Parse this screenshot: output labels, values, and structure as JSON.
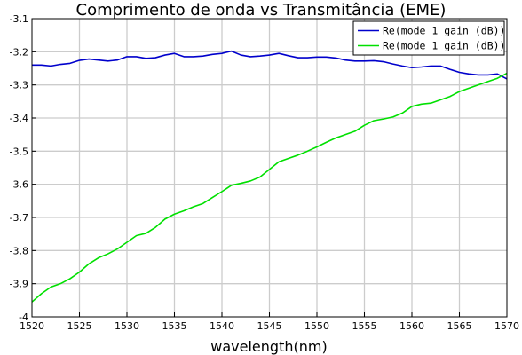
{
  "chart_data": {
    "type": "line",
    "title": "Comprimento de onda vs Transmitância (EME)",
    "xlabel": "wavelength(nm)",
    "ylabel": "",
    "xlim": [
      1520,
      1570
    ],
    "ylim": [
      -4,
      -3.1
    ],
    "xticks": [
      1520,
      1525,
      1530,
      1535,
      1540,
      1545,
      1550,
      1555,
      1560,
      1565,
      1570
    ],
    "xtick_labels": [
      "1520",
      "1525",
      "1530",
      "1535",
      "1540",
      "1545",
      "1550",
      "1555",
      "1560",
      "1565",
      "1570"
    ],
    "yticks": [
      -4,
      -3.9,
      -3.8,
      -3.7,
      -3.6,
      -3.5,
      -3.4,
      -3.3,
      -3.2,
      -3.1
    ],
    "ytick_labels": [
      "-4",
      "-3.9",
      "-3.8",
      "-3.7",
      "-3.6",
      "-3.5",
      "-3.4",
      "-3.3",
      "-3.2",
      "-3.1"
    ],
    "grid": true,
    "legend_position": "top-right",
    "series": [
      {
        "name": "Re(mode 1 gain (dB))",
        "color": "#0000cc",
        "x": [
          1520,
          1521,
          1522,
          1523,
          1524,
          1525,
          1526,
          1527,
          1528,
          1529,
          1530,
          1531,
          1532,
          1533,
          1534,
          1535,
          1536,
          1537,
          1538,
          1539,
          1540,
          1541,
          1542,
          1543,
          1544,
          1545,
          1546,
          1547,
          1548,
          1549,
          1550,
          1551,
          1552,
          1553,
          1554,
          1555,
          1556,
          1557,
          1558,
          1559,
          1560,
          1561,
          1562,
          1563,
          1564,
          1565,
          1566,
          1567,
          1568,
          1569,
          1570
        ],
        "y": [
          -3.24,
          -3.24,
          -3.243,
          -3.238,
          -3.235,
          -3.226,
          -3.222,
          -3.225,
          -3.228,
          -3.225,
          -3.215,
          -3.215,
          -3.22,
          -3.218,
          -3.21,
          -3.205,
          -3.215,
          -3.215,
          -3.213,
          -3.208,
          -3.205,
          -3.198,
          -3.21,
          -3.215,
          -3.213,
          -3.21,
          -3.205,
          -3.212,
          -3.218,
          -3.218,
          -3.216,
          -3.216,
          -3.219,
          -3.225,
          -3.228,
          -3.228,
          -3.227,
          -3.23,
          -3.237,
          -3.243,
          -3.248,
          -3.246,
          -3.243,
          -3.243,
          -3.253,
          -3.262,
          -3.267,
          -3.27,
          -3.27,
          -3.267,
          -3.282
        ]
      },
      {
        "name": "Re(mode 1 gain (dB))",
        "color": "#00e000",
        "x": [
          1520,
          1521,
          1522,
          1523,
          1524,
          1525,
          1526,
          1527,
          1528,
          1529,
          1530,
          1531,
          1532,
          1533,
          1534,
          1535,
          1536,
          1537,
          1538,
          1539,
          1540,
          1541,
          1542,
          1543,
          1544,
          1545,
          1546,
          1547,
          1548,
          1549,
          1550,
          1551,
          1552,
          1553,
          1554,
          1555,
          1556,
          1557,
          1558,
          1559,
          1560,
          1561,
          1562,
          1563,
          1564,
          1565,
          1566,
          1567,
          1568,
          1569,
          1570
        ],
        "y": [
          -3.955,
          -3.93,
          -3.91,
          -3.9,
          -3.885,
          -3.865,
          -3.84,
          -3.822,
          -3.81,
          -3.795,
          -3.775,
          -3.755,
          -3.748,
          -3.73,
          -3.705,
          -3.69,
          -3.68,
          -3.668,
          -3.658,
          -3.64,
          -3.622,
          -3.603,
          -3.597,
          -3.59,
          -3.578,
          -3.555,
          -3.532,
          -3.522,
          -3.512,
          -3.5,
          -3.487,
          -3.473,
          -3.46,
          -3.45,
          -3.44,
          -3.422,
          -3.408,
          -3.403,
          -3.397,
          -3.385,
          -3.365,
          -3.358,
          -3.355,
          -3.345,
          -3.335,
          -3.32,
          -3.31,
          -3.3,
          -3.29,
          -3.28,
          -3.265
        ]
      }
    ]
  }
}
